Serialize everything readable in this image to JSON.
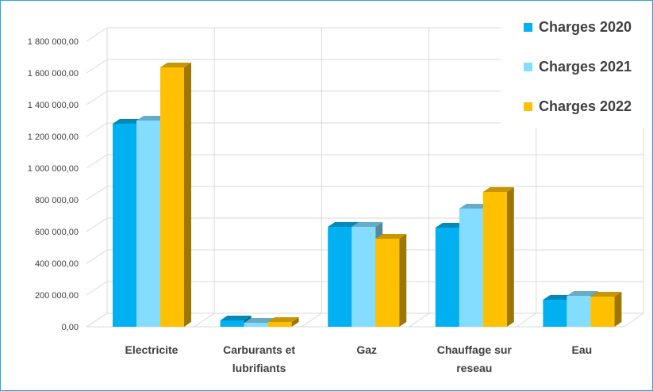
{
  "chart_data": {
    "type": "bar",
    "style": "3d-clustered-column",
    "categories": [
      [
        "Electricite"
      ],
      [
        "Carburants et",
        "lubrifiants"
      ],
      [
        "Gaz"
      ],
      [
        "Chauffage sur",
        "reseau"
      ],
      [
        "Eau"
      ]
    ],
    "series": [
      {
        "name": "Charges 2020",
        "color": "#00b0f0",
        "values": [
          1280000,
          40000,
          630000,
          625000,
          170000
        ]
      },
      {
        "name": "Charges 2021",
        "color": "#84ddff",
        "values": [
          1300000,
          25000,
          630000,
          745000,
          195000
        ]
      },
      {
        "name": "Charges 2022",
        "color": "#ffc000",
        "values": [
          1635000,
          30000,
          555000,
          850000,
          190000
        ]
      }
    ],
    "yticks": [
      "0,00",
      "200 000,00",
      "400 000,00",
      "600 000,00",
      "800 000,00",
      "1 000 000,00",
      "1 200 000,00",
      "1 400 000,00",
      "1 600 000,00",
      "1 800 000,00"
    ],
    "ylim": [
      0,
      1800000
    ],
    "grid": true,
    "legend_position": "top-right"
  }
}
